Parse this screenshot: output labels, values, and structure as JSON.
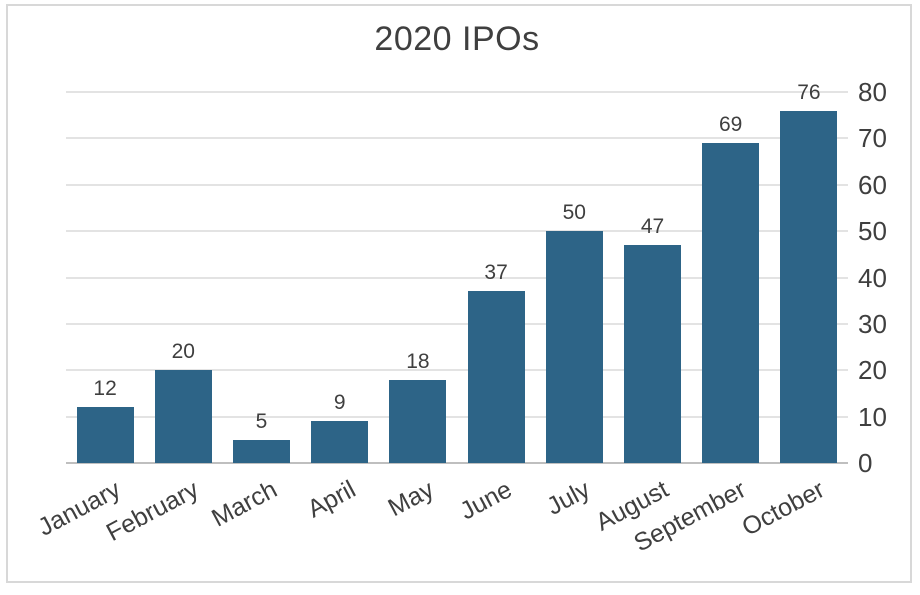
{
  "window": {
    "background_color": "#ffffff",
    "frame_border_color": "#d8d8d8"
  },
  "chart_data": {
    "type": "bar",
    "title": "2020 IPOs",
    "categories": [
      "January",
      "February",
      "March",
      "April",
      "May",
      "June",
      "July",
      "August",
      "September",
      "October"
    ],
    "values": [
      12,
      20,
      5,
      9,
      18,
      37,
      50,
      47,
      69,
      76
    ],
    "xlabel": "",
    "ylabel": "",
    "ylim": [
      0,
      80
    ],
    "yticks": [
      0,
      10,
      20,
      30,
      40,
      50,
      60,
      70,
      80
    ],
    "yaxis_side": "right",
    "grid": true,
    "legend": "none",
    "data_labels_shown": true,
    "x_labels_rotated_deg": -28,
    "colors": {
      "bar": "#2d6487",
      "gridline": "#e3e3e3",
      "axis_line": "#bfbfbf",
      "text": "#3f3f3f"
    }
  }
}
